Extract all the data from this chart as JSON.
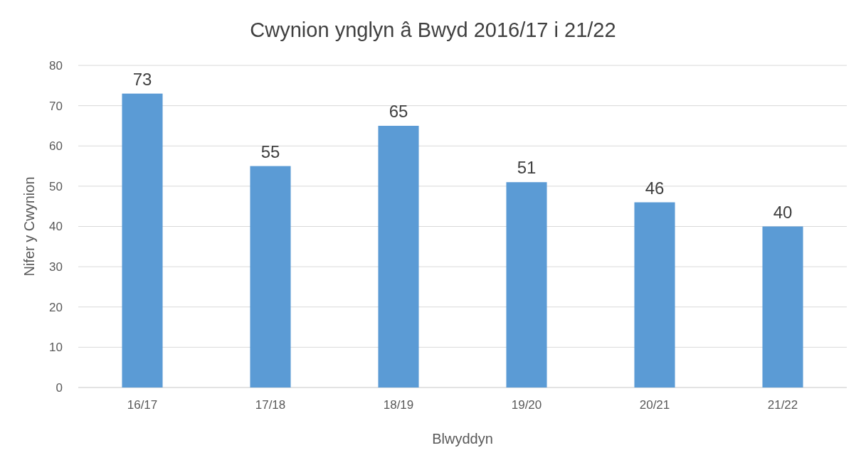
{
  "chart_data": {
    "type": "bar",
    "title": "Cwynion ynglyn â Bwyd 2016/17 i 21/22",
    "xlabel": "Blwyddyn",
    "ylabel": "Nifer y Cwynion",
    "categories": [
      "16/17",
      "17/18",
      "18/19",
      "19/20",
      "20/21",
      "21/22"
    ],
    "values": [
      73,
      55,
      65,
      51,
      46,
      40
    ],
    "color": "#5b9bd5",
    "ylim": [
      0,
      80
    ],
    "yticks": [
      0,
      10,
      20,
      30,
      40,
      50,
      60,
      70,
      80
    ],
    "grid": "y",
    "data_labels": true
  }
}
